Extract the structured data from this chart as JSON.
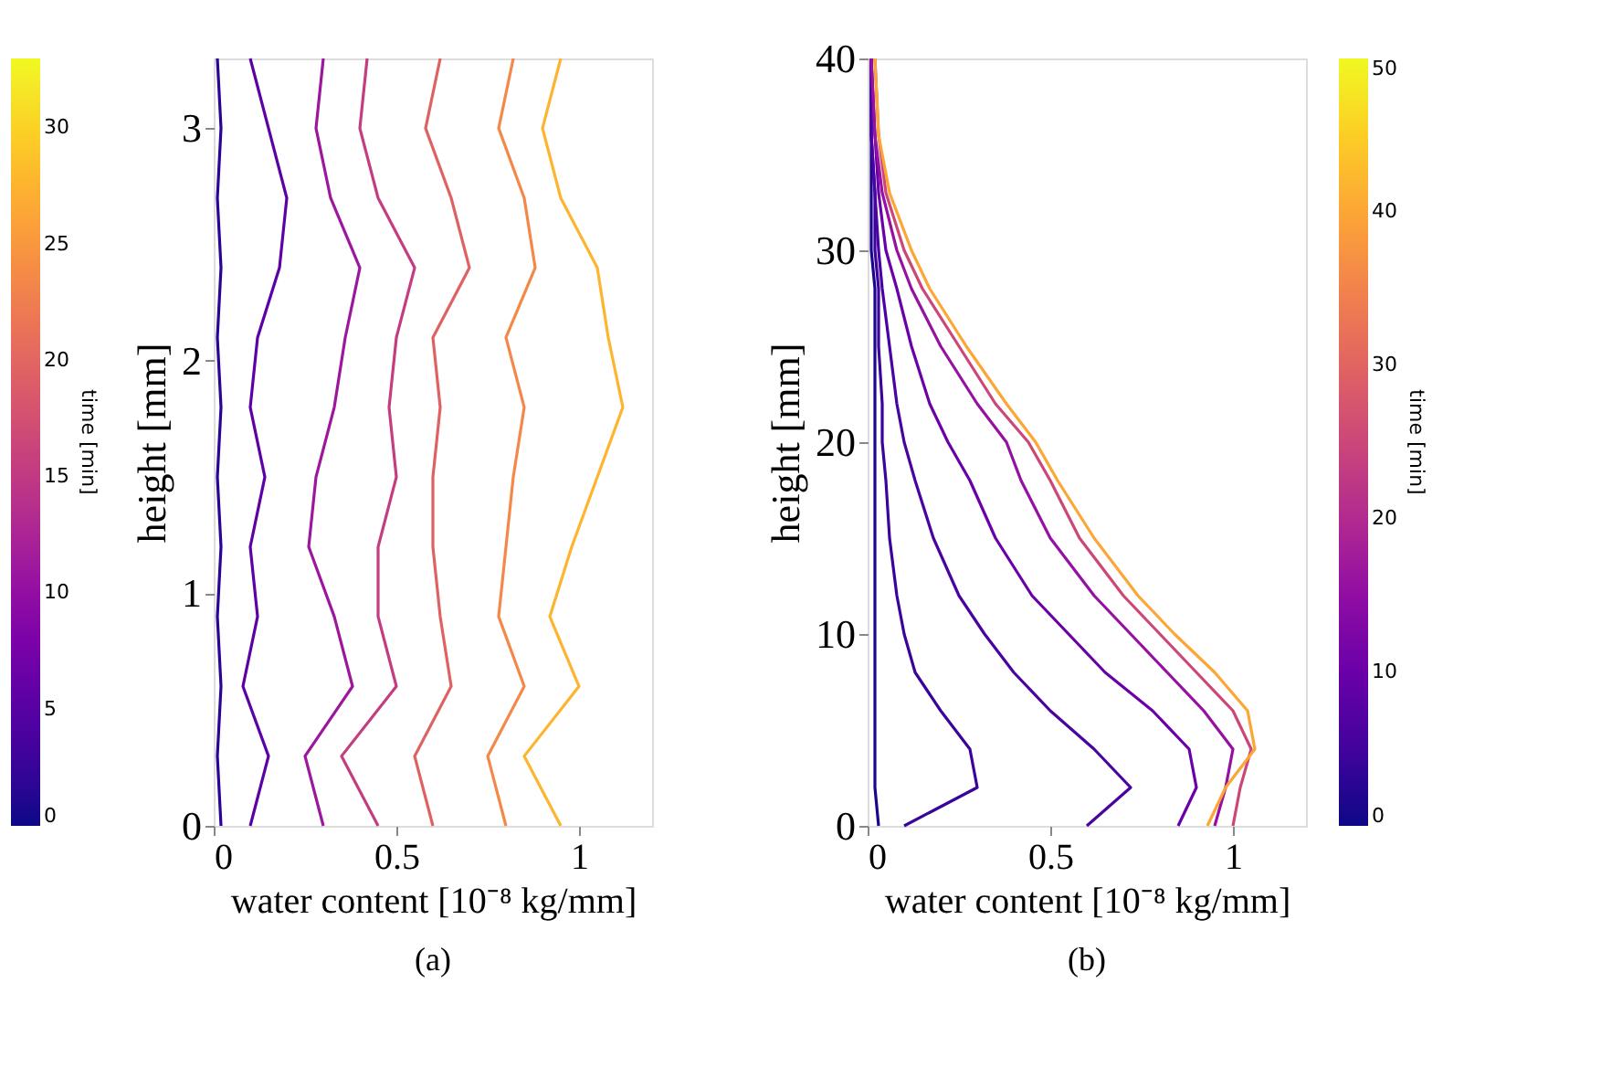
{
  "chart_data": [
    {
      "type": "line",
      "title": "(a)",
      "xlabel": "water content [10⁻⁸ kg/mm]",
      "ylabel": "height [mm]",
      "clabel": "time [min]",
      "clim": [
        0,
        33
      ],
      "cticks": [
        0,
        5,
        10,
        15,
        20,
        25,
        30
      ],
      "xlim": [
        0,
        1.2
      ],
      "xticks": [
        0,
        0.5,
        1
      ],
      "ylim": [
        0,
        3.3
      ],
      "yticks": [
        0,
        1,
        2,
        3
      ],
      "series": [
        {
          "color": "#2a0593",
          "x": [
            0.02,
            0.01,
            0.02,
            0.01,
            0.02,
            0.01,
            0.02,
            0.01,
            0.02,
            0.01,
            0.02,
            0.01
          ],
          "values": [
            0,
            0.3,
            0.6,
            0.9,
            1.2,
            1.5,
            1.8,
            2.1,
            2.4,
            2.7,
            3.0,
            3.3
          ]
        },
        {
          "color": "#5c01a6",
          "x": [
            0.1,
            0.15,
            0.08,
            0.12,
            0.1,
            0.14,
            0.1,
            0.12,
            0.18,
            0.2,
            0.15,
            0.1
          ],
          "values": [
            0,
            0.3,
            0.6,
            0.9,
            1.2,
            1.5,
            1.8,
            2.1,
            2.4,
            2.7,
            3.0,
            3.3
          ]
        },
        {
          "color": "#9c179e",
          "x": [
            0.3,
            0.25,
            0.38,
            0.33,
            0.26,
            0.28,
            0.33,
            0.36,
            0.4,
            0.32,
            0.28,
            0.3
          ],
          "values": [
            0,
            0.3,
            0.6,
            0.9,
            1.2,
            1.5,
            1.8,
            2.1,
            2.4,
            2.7,
            3.0,
            3.3
          ]
        },
        {
          "color": "#c33d80",
          "x": [
            0.45,
            0.35,
            0.5,
            0.45,
            0.45,
            0.5,
            0.48,
            0.5,
            0.55,
            0.45,
            0.4,
            0.42
          ],
          "values": [
            0,
            0.3,
            0.6,
            0.9,
            1.2,
            1.5,
            1.8,
            2.1,
            2.4,
            2.7,
            3.0,
            3.3
          ]
        },
        {
          "color": "#df6263",
          "x": [
            0.6,
            0.55,
            0.65,
            0.62,
            0.6,
            0.6,
            0.62,
            0.6,
            0.7,
            0.65,
            0.58,
            0.62
          ],
          "values": [
            0,
            0.3,
            0.6,
            0.9,
            1.2,
            1.5,
            1.8,
            2.1,
            2.4,
            2.7,
            3.0,
            3.3
          ]
        },
        {
          "color": "#f48849",
          "x": [
            0.8,
            0.75,
            0.85,
            0.78,
            0.8,
            0.82,
            0.85,
            0.8,
            0.88,
            0.85,
            0.78,
            0.82
          ],
          "values": [
            0,
            0.3,
            0.6,
            0.9,
            1.2,
            1.5,
            1.8,
            2.1,
            2.4,
            2.7,
            3.0,
            3.3
          ]
        },
        {
          "color": "#fdb42f",
          "x": [
            0.95,
            0.85,
            1.0,
            0.92,
            0.98,
            1.05,
            1.12,
            1.08,
            1.05,
            0.95,
            0.9,
            0.95
          ],
          "values": [
            0,
            0.3,
            0.6,
            0.9,
            1.2,
            1.5,
            1.8,
            2.1,
            2.4,
            2.7,
            3.0,
            3.3
          ]
        }
      ]
    },
    {
      "type": "line",
      "title": "(b)",
      "xlabel": "water content [10⁻⁸ kg/mm]",
      "ylabel": "height [mm]",
      "clabel": "time [min]",
      "clim": [
        0,
        50
      ],
      "cticks": [
        0,
        10,
        20,
        30,
        40,
        50
      ],
      "xlim": [
        0,
        1.2
      ],
      "xticks": [
        0,
        0.5,
        1
      ],
      "ylim": [
        0,
        40
      ],
      "yticks": [
        0,
        10,
        20,
        30,
        40
      ],
      "series": [
        {
          "color": "#1b068d",
          "x": [
            0.03,
            0.02,
            0.02,
            0.02,
            0.02,
            0.02,
            0.02,
            0.02,
            0.02,
            0.02,
            0.02,
            0.02,
            0.02,
            0.01,
            0.01,
            0.01,
            0.01
          ],
          "values": [
            0,
            2,
            4,
            6,
            8,
            10,
            12,
            15,
            18,
            20,
            22,
            25,
            28,
            30,
            33,
            36,
            40
          ]
        },
        {
          "color": "#3a049a",
          "x": [
            0.1,
            0.3,
            0.28,
            0.2,
            0.13,
            0.1,
            0.08,
            0.06,
            0.05,
            0.04,
            0.04,
            0.03,
            0.03,
            0.02,
            0.02,
            0.01,
            0.01
          ],
          "values": [
            0,
            2,
            4,
            6,
            8,
            10,
            12,
            15,
            18,
            20,
            22,
            25,
            28,
            30,
            33,
            36,
            40
          ]
        },
        {
          "color": "#4903a0",
          "x": [
            0.6,
            0.72,
            0.62,
            0.5,
            0.4,
            0.32,
            0.25,
            0.18,
            0.13,
            0.1,
            0.08,
            0.06,
            0.04,
            0.03,
            0.02,
            0.01,
            0.01
          ],
          "values": [
            0,
            2,
            4,
            6,
            8,
            10,
            12,
            15,
            18,
            20,
            22,
            25,
            28,
            30,
            33,
            36,
            40
          ]
        },
        {
          "color": "#6a00a8",
          "x": [
            0.85,
            0.9,
            0.88,
            0.78,
            0.65,
            0.55,
            0.45,
            0.35,
            0.28,
            0.22,
            0.17,
            0.12,
            0.08,
            0.05,
            0.03,
            0.02,
            0.01
          ],
          "values": [
            0,
            2,
            4,
            6,
            8,
            10,
            12,
            15,
            18,
            20,
            22,
            25,
            28,
            30,
            33,
            36,
            40
          ]
        },
        {
          "color": "#9511a1",
          "x": [
            0.95,
            0.98,
            1.0,
            0.92,
            0.82,
            0.72,
            0.62,
            0.5,
            0.42,
            0.38,
            0.3,
            0.2,
            0.12,
            0.08,
            0.04,
            0.02,
            0.01
          ],
          "values": [
            0,
            2,
            4,
            6,
            8,
            10,
            12,
            15,
            18,
            20,
            22,
            25,
            28,
            30,
            33,
            36,
            40
          ]
        },
        {
          "color": "#cc4778",
          "x": [
            1.0,
            1.02,
            1.05,
            1.0,
            0.9,
            0.8,
            0.7,
            0.58,
            0.5,
            0.44,
            0.35,
            0.25,
            0.15,
            0.1,
            0.05,
            0.03,
            0.02
          ],
          "values": [
            0,
            2,
            4,
            6,
            8,
            10,
            12,
            15,
            18,
            20,
            22,
            25,
            28,
            30,
            33,
            36,
            40
          ]
        },
        {
          "color": "#fca636",
          "x": [
            0.93,
            0.98,
            1.06,
            1.04,
            0.95,
            0.84,
            0.74,
            0.62,
            0.52,
            0.46,
            0.38,
            0.27,
            0.17,
            0.12,
            0.06,
            0.03,
            0.02
          ],
          "values": [
            0,
            2,
            4,
            6,
            8,
            10,
            12,
            15,
            18,
            20,
            22,
            25,
            28,
            30,
            33,
            36,
            40
          ]
        }
      ]
    }
  ]
}
